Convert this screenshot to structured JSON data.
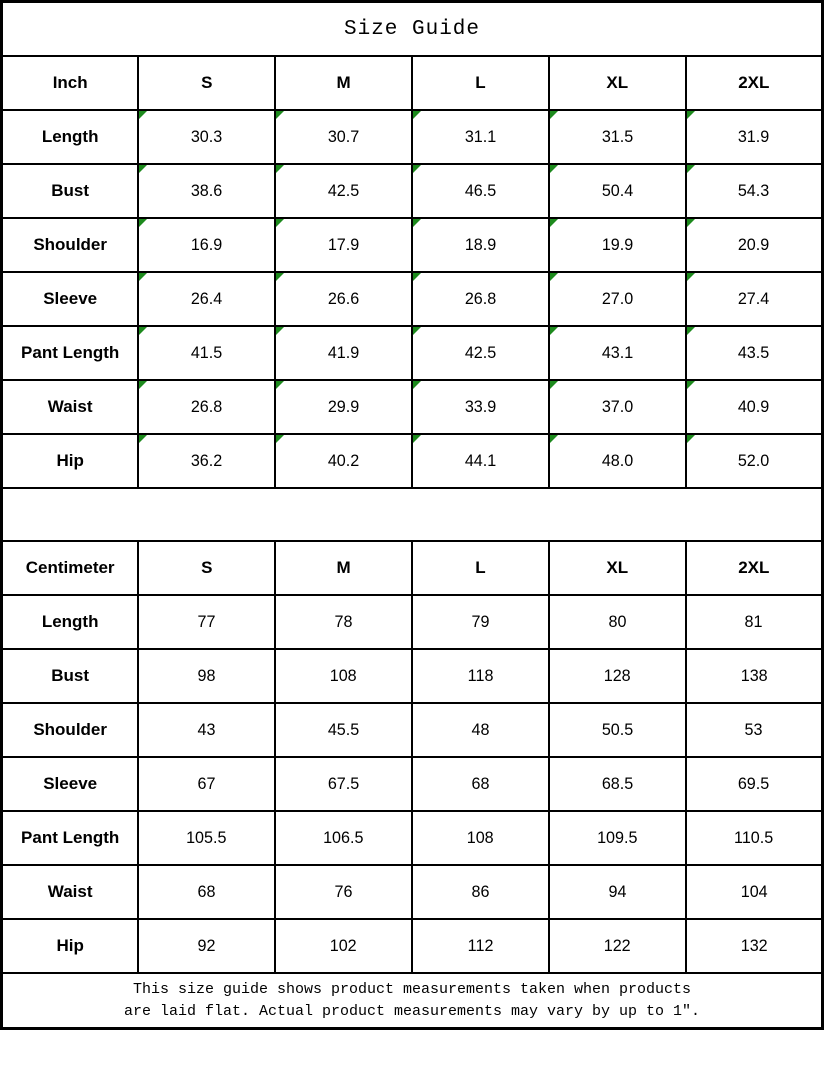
{
  "title": "Size Guide",
  "sections": [
    {
      "unit": "Inch",
      "sizes": [
        "S",
        "M",
        "L",
        "XL",
        "2XL"
      ],
      "rows": [
        {
          "label": "Length",
          "values": [
            "30.3",
            "30.7",
            "31.1",
            "31.5",
            "31.9"
          ]
        },
        {
          "label": "Bust",
          "values": [
            "38.6",
            "42.5",
            "46.5",
            "50.4",
            "54.3"
          ]
        },
        {
          "label": "Shoulder",
          "values": [
            "16.9",
            "17.9",
            "18.9",
            "19.9",
            "20.9"
          ]
        },
        {
          "label": "Sleeve",
          "values": [
            "26.4",
            "26.6",
            "26.8",
            "27.0",
            "27.4"
          ]
        },
        {
          "label": "Pant Length",
          "values": [
            "41.5",
            "41.9",
            "42.5",
            "43.1",
            "43.5"
          ]
        },
        {
          "label": "Waist",
          "values": [
            "26.8",
            "29.9",
            "33.9",
            "37.0",
            "40.9"
          ]
        },
        {
          "label": "Hip",
          "values": [
            "36.2",
            "40.2",
            "44.1",
            "48.0",
            "52.0"
          ]
        }
      ]
    },
    {
      "unit": "Centimeter",
      "sizes": [
        "S",
        "M",
        "L",
        "XL",
        "2XL"
      ],
      "rows": [
        {
          "label": "Length",
          "values": [
            "77",
            "78",
            "79",
            "80",
            "81"
          ]
        },
        {
          "label": "Bust",
          "values": [
            "98",
            "108",
            "118",
            "128",
            "138"
          ]
        },
        {
          "label": "Shoulder",
          "values": [
            "43",
            "45.5",
            "48",
            "50.5",
            "53"
          ]
        },
        {
          "label": "Sleeve",
          "values": [
            "67",
            "67.5",
            "68",
            "68.5",
            "69.5"
          ]
        },
        {
          "label": "Pant Length",
          "values": [
            "105.5",
            "106.5",
            "108",
            "109.5",
            "110.5"
          ]
        },
        {
          "label": "Waist",
          "values": [
            "68",
            "76",
            "86",
            "94",
            "104"
          ]
        },
        {
          "label": "Hip",
          "values": [
            "92",
            "102",
            "112",
            "122",
            "132"
          ]
        }
      ]
    }
  ],
  "footer": {
    "line1": "This size guide shows product measurements taken when products",
    "line2": "are laid flat. Actual product measurements may vary by up to 1″."
  },
  "colors": {
    "flag_green": "#1d8a1d",
    "border": "#000000"
  }
}
